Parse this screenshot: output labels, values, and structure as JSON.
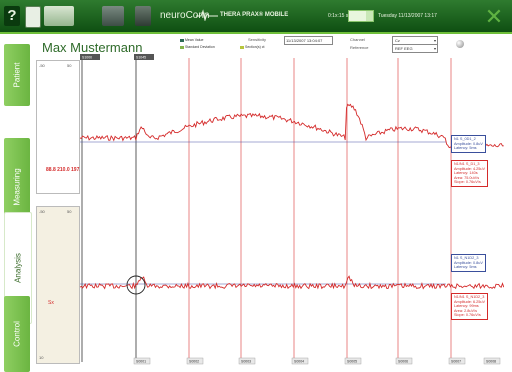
{
  "toolbar": {
    "help_label": "?",
    "brand": "neuroConn",
    "device_title": "THERA PRAX® MOBILE",
    "timer": "0:1x:15 sec",
    "datetime": "Tuesday 11/13/2007 13:17"
  },
  "sidebar": {
    "items": [
      {
        "label": "Patient"
      },
      {
        "label": "Measuring"
      },
      {
        "label": "Analysis"
      },
      {
        "label": "Control"
      }
    ]
  },
  "header": {
    "patient_name": "Max Mustermann",
    "legend": {
      "mean": "Mean Value",
      "std": "Standard Deviation",
      "selected": "Section(s) ct"
    },
    "sensitivity_label": "Sensitivity",
    "sensitivity_value": "11/13/2007 13:04:07",
    "channel_label": "Channel",
    "channel_value": "Cz",
    "reference_label": "Reference",
    "reference_value": "REF EEG"
  },
  "markers": {
    "top": [
      "S1000",
      "S1045"
    ],
    "bottom": [
      "S0001",
      "S0002",
      "S0003",
      "S0004",
      "S0005",
      "S0006",
      "S0007",
      "S0008"
    ]
  },
  "scale": {
    "top_min": "-50",
    "top_max": "50",
    "bottom_min": "-50",
    "bottom_max": "50",
    "axis_small_top": "10",
    "axis_small_bottom": "10"
  },
  "readout": "88.8 210.0 197.0",
  "sx_label": "Sx",
  "boxes": {
    "upper_blue": [
      "N1 S_0D1_2",
      "Amplitude: 0.8uV",
      "Latency: 5ms"
    ],
    "upper_red": [
      "N1/N1 S_D1_3",
      "Amplitude: 4.25uV",
      "Latency: 140s",
      "Area: 75.0uV/s",
      "Slope: 0.76uV/s"
    ],
    "lower_blue": [
      "N1 S_N1D2_3",
      "Amplitude: 0.8uV",
      "Latency: 5ms"
    ],
    "lower_red": [
      "N1/N1 S_N1D2_3",
      "Amplitude: 6.25uV",
      "Latency: 99ms",
      "Area: 2.8uV/s",
      "Slope: 0.76uV/s"
    ]
  },
  "colors": {
    "accent": "#2d7a2b",
    "nav_green": "#7cc04e",
    "trace": "#d42a2a",
    "baseline": "#4a55a8"
  }
}
